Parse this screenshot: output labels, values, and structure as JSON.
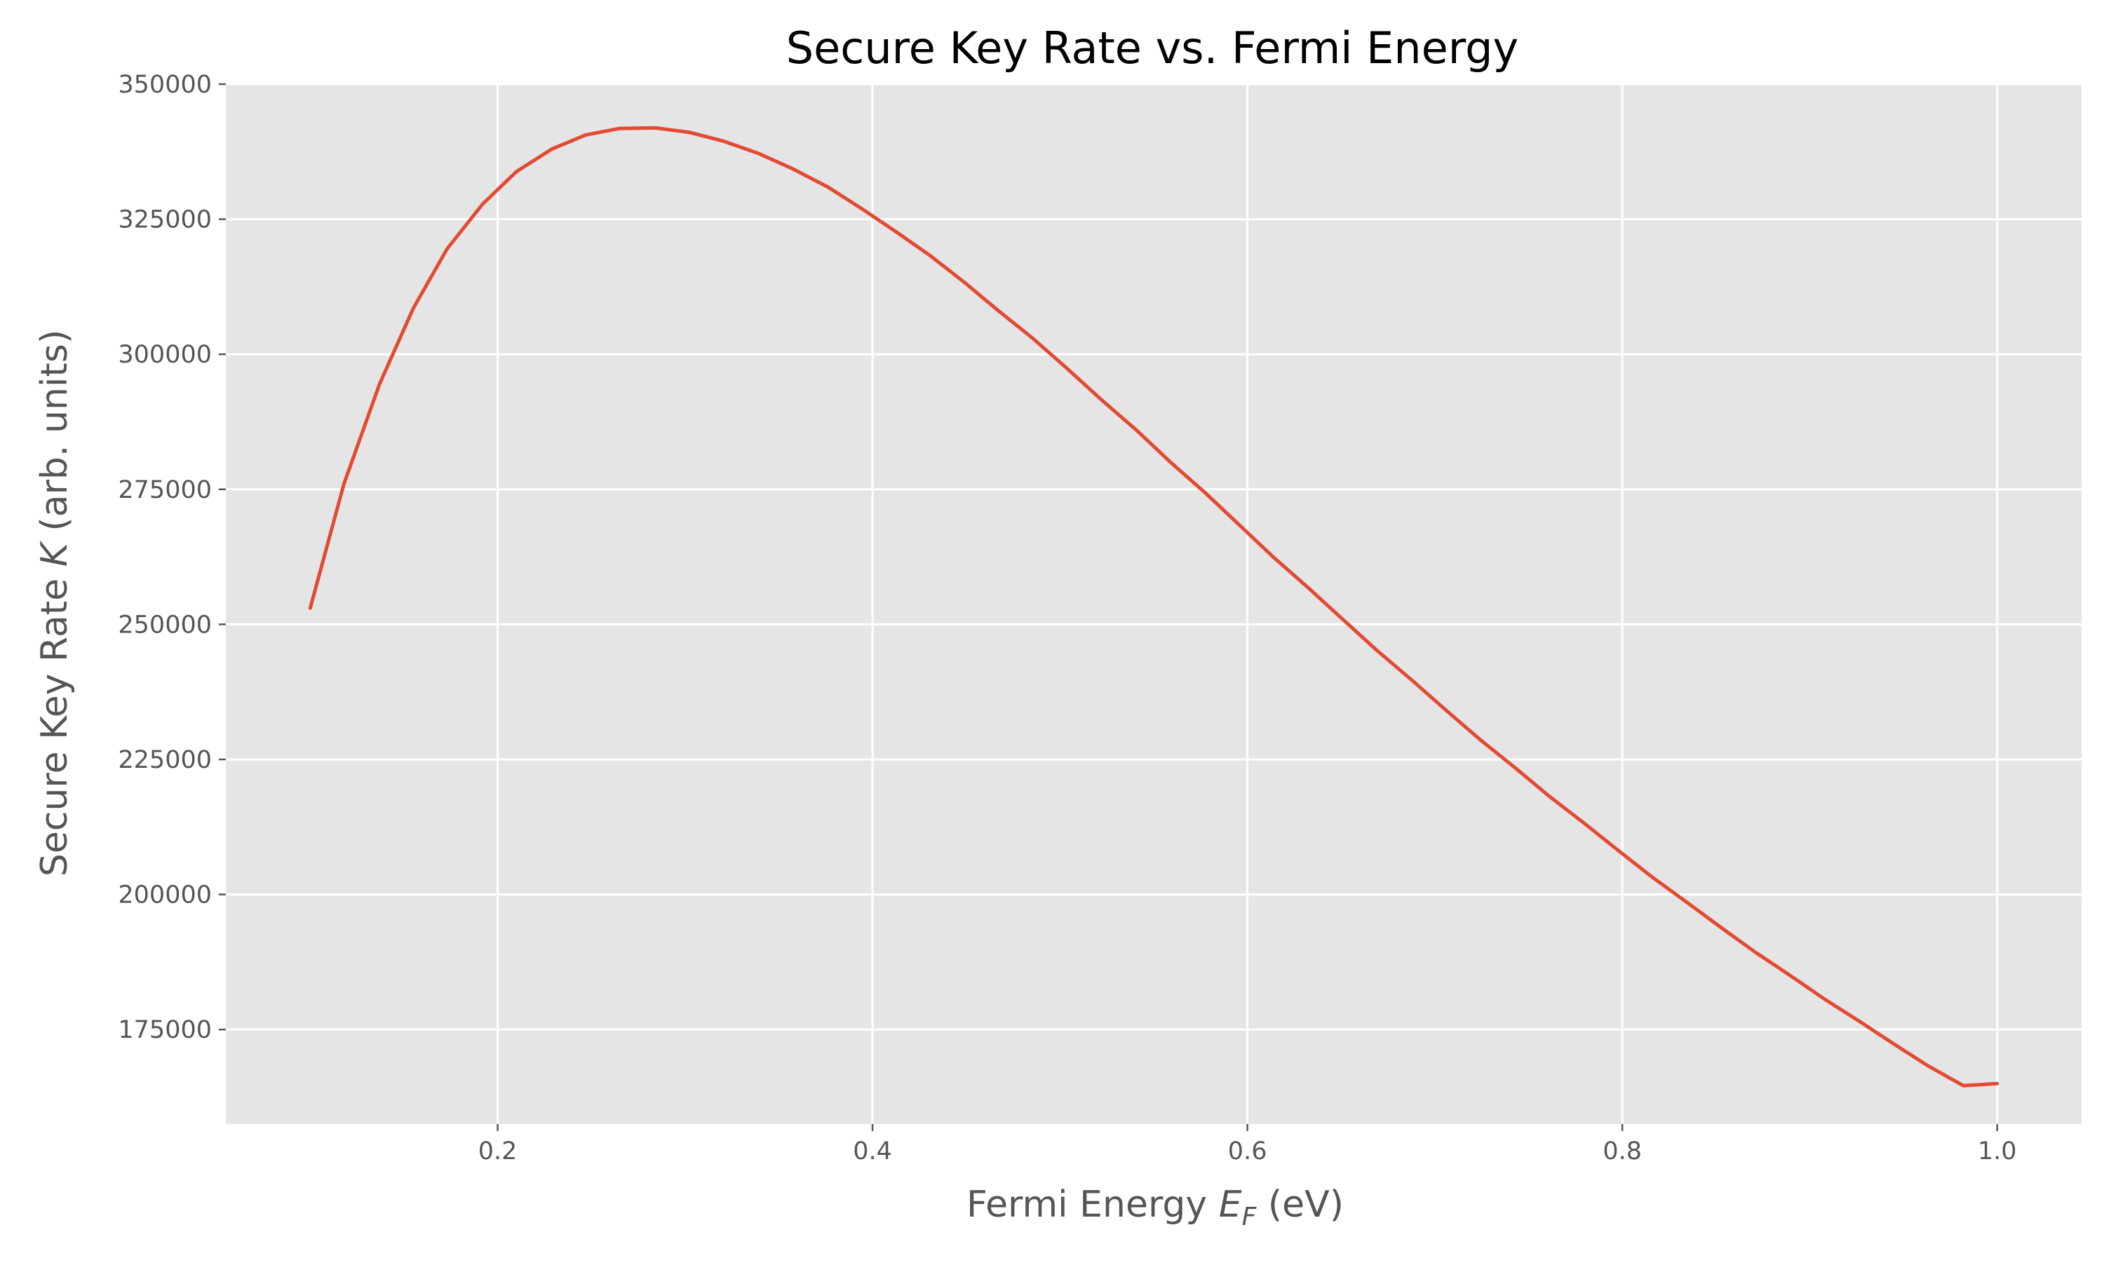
{
  "chart_data": {
    "type": "line",
    "title": "Secure Key Rate vs. Fermi Energy",
    "xlabel_main": "Fermi Energy ",
    "xlabel_symbol": "E",
    "xlabel_sub": "F",
    "xlabel_unit": " (eV)",
    "ylabel_main": "Secure Key Rate ",
    "ylabel_symbol": "K",
    "ylabel_unit": " (arb. units)",
    "xlim": [
      0.055,
      1.045
    ],
    "ylim": [
      157500,
      350000
    ],
    "x_ticks": [
      0.2,
      0.4,
      0.6,
      0.8,
      1.0
    ],
    "x_tick_labels": [
      "0.2",
      "0.4",
      "0.6",
      "0.8",
      "1.0"
    ],
    "y_ticks": [
      175000,
      200000,
      225000,
      250000,
      275000,
      300000,
      325000,
      350000
    ],
    "y_tick_labels": [
      "175000",
      "200000",
      "225000",
      "250000",
      "275000",
      "300000",
      "325000",
      "350000"
    ],
    "grid": true,
    "background_color": "#e5e5e5",
    "series": [
      {
        "color": "#e24a33",
        "x": [
          0.1,
          0.118,
          0.137,
          0.155,
          0.173,
          0.192,
          0.21,
          0.229,
          0.247,
          0.265,
          0.284,
          0.302,
          0.32,
          0.339,
          0.357,
          0.376,
          0.394,
          0.412,
          0.431,
          0.449,
          0.467,
          0.486,
          0.504,
          0.522,
          0.541,
          0.559,
          0.578,
          0.596,
          0.614,
          0.633,
          0.651,
          0.669,
          0.688,
          0.706,
          0.724,
          0.743,
          0.761,
          0.78,
          0.798,
          0.816,
          0.835,
          0.853,
          0.871,
          0.89,
          0.908,
          0.927,
          0.945,
          0.963,
          0.982,
          1.0
        ],
        "y": [
          253000,
          276000,
          294500,
          308500,
          319500,
          327800,
          333800,
          338000,
          340600,
          341800,
          341900,
          341100,
          339500,
          337200,
          334400,
          331000,
          327000,
          322800,
          318200,
          313300,
          308100,
          302800,
          297300,
          291600,
          285900,
          280000,
          274200,
          268300,
          262400,
          256600,
          250900,
          245200,
          239600,
          234100,
          228700,
          223400,
          218200,
          213100,
          208100,
          203200,
          198400,
          193800,
          189300,
          184900,
          180600,
          176400,
          172300,
          168300,
          164600,
          165000
        ]
      }
    ]
  }
}
